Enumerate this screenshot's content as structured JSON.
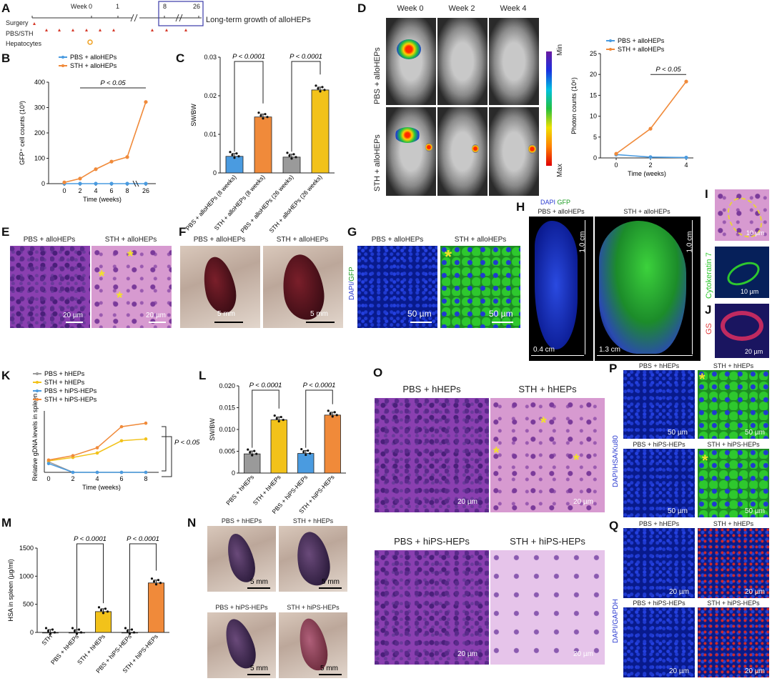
{
  "panels": {
    "A": {
      "letter": "A",
      "week_label": "Week",
      "ticks": [
        "0",
        "1",
        "8",
        "26"
      ],
      "rows": [
        "Surgery",
        "PBS/STH",
        "Hepatocytes"
      ],
      "caption": "Long-term growth of alloHEPs"
    },
    "B": {
      "letter": "B"
    },
    "C": {
      "letter": "C"
    },
    "D": {
      "letter": "D",
      "cols": [
        "Week 0",
        "Week 2",
        "Week 4"
      ],
      "rows": [
        "PBS + alloHEPs",
        "STH + alloHEPs"
      ],
      "colorbar_min": "Min",
      "colorbar_max": "Max"
    },
    "E": {
      "letter": "E",
      "left": "PBS + alloHEPs",
      "right": "STH + alloHEPs",
      "scale": "20 µm"
    },
    "F": {
      "letter": "F",
      "left": "PBS + alloHEPs",
      "right": "STH + alloHEPs",
      "scale": "5 mm"
    },
    "G": {
      "letter": "G",
      "left": "PBS + alloHEPs",
      "right": "STH + alloHEPs",
      "scale": "50 µm",
      "stain_dapi": "DAPI/",
      "stain_gfp": "GFP"
    },
    "H": {
      "letter": "H",
      "dapi": "DAPI",
      "gfp": "GFP",
      "left": "PBS + alloHEPs",
      "right": "STH + alloHEPs",
      "dim_left_h": "1.0 cm",
      "dim_left_w": "0.4 cm",
      "dim_right_h": "1.0 cm",
      "dim_right_w": "1.3 cm"
    },
    "I": {
      "letter": "I",
      "stain": "Cytokeratin 7",
      "scale_top": "10 µm",
      "scale_mid": "10 µm"
    },
    "J": {
      "letter": "J",
      "stain": "GS",
      "scale": "20 µm"
    },
    "K": {
      "letter": "K"
    },
    "L": {
      "letter": "L"
    },
    "M": {
      "letter": "M"
    },
    "N": {
      "letter": "N",
      "tl": "PBS + hHEPs",
      "tr": "STH + hHEPs",
      "bl": "PBS + hiPS-HEPs",
      "br": "STH + hiPS-HEPs",
      "scale": "5 mm"
    },
    "O": {
      "letter": "O",
      "tl": "PBS + hHEPs",
      "tr": "STH + hHEPs",
      "bl": "PBS + hiPS-HEPs",
      "br": "STH + hiPS-HEPs",
      "scale": "20 µm"
    },
    "P": {
      "letter": "P",
      "tl": "PBS + hHEPs",
      "tr": "STH + hHEPs",
      "bl": "PBS + hiPS-HEPs",
      "br": "STH + hiPS-HEPs",
      "scale": "50 µm",
      "stain": "DAPI/HSA/Ku80"
    },
    "Q": {
      "letter": "Q",
      "tl": "PBS + hHEPs",
      "tr": "STH + hHEPs",
      "bl": "PBS + hiPS-HEPs",
      "br": "STH + hiPS-HEPs",
      "scale": "20 µm",
      "stain": "DAPI/GAPDH"
    }
  },
  "colors": {
    "blue": "#4a9be0",
    "orange": "#f08a3a",
    "gray": "#9a9a9a",
    "yellow": "#f2c21a"
  },
  "chart_data": [
    {
      "id": "B",
      "type": "line",
      "xlabel": "Time (weeks)",
      "ylabel": "GFP⁺ cell counts (10³)",
      "x": [
        "0",
        "2",
        "4",
        "6",
        "8",
        "26"
      ],
      "ylim": [
        0,
        400
      ],
      "yticks": [
        "0",
        "100",
        "200",
        "300",
        "400"
      ],
      "series": [
        {
          "name": "PBS + alloHEPs",
          "values": [
            0,
            0,
            0,
            0,
            0,
            0
          ]
        },
        {
          "name": "STH + alloHEPs",
          "values": [
            5,
            20,
            57,
            87,
            105,
            322
          ]
        }
      ],
      "annotation": "P < 0.05"
    },
    {
      "id": "C",
      "type": "bar",
      "ylabel": "SW/BW",
      "ylim": [
        0,
        0.03
      ],
      "yticks": [
        "0",
        "0.01",
        "0.02",
        "0.03"
      ],
      "categories": [
        "PBS + alloHEPs (8 weeks)",
        "STH + alloHEPs (8 weeks)",
        "PBS + alloHEPs (26 weeks)",
        "STH + alloHEPs (26 weeks)"
      ],
      "values": [
        0.0043,
        0.0145,
        0.0041,
        0.0215
      ],
      "annotations": [
        "P < 0.0001",
        "P < 0.0001"
      ]
    },
    {
      "id": "D",
      "type": "line",
      "xlabel": "Time (weeks)",
      "ylabel": "Photon counts (10⁶)",
      "x": [
        "0",
        "2",
        "4"
      ],
      "ylim": [
        0,
        25
      ],
      "yticks": [
        "0",
        "5",
        "10",
        "15",
        "20",
        "25"
      ],
      "series": [
        {
          "name": "PBS + alloHEPs",
          "values": [
            0.8,
            0.2,
            0.1
          ]
        },
        {
          "name": "STH + alloHEPs",
          "values": [
            1.0,
            7.0,
            18.3
          ]
        }
      ],
      "annotation": "P < 0.05"
    },
    {
      "id": "K",
      "type": "line",
      "xlabel": "Time (weeks)",
      "ylabel": "Relative gDNA levels in spleen",
      "x": [
        "0",
        "2",
        "4",
        "6",
        "8"
      ],
      "series": [
        {
          "name": "PBS + hHEPs",
          "values": [
            1.2,
            0,
            0,
            0,
            0
          ]
        },
        {
          "name": "STH + hHEPs",
          "values": [
            1.3,
            1.7,
            2.2,
            3.6,
            3.8
          ]
        },
        {
          "name": "PBS + hiPS-HEPs",
          "values": [
            1.0,
            0,
            0,
            0,
            0
          ]
        },
        {
          "name": "STH + hiPS-HEPs",
          "values": [
            1.4,
            1.9,
            2.8,
            5.2,
            5.6
          ]
        }
      ],
      "annotation": "P < 0.05"
    },
    {
      "id": "L",
      "type": "bar",
      "ylabel": "SW/BW",
      "ylim": [
        0,
        0.02
      ],
      "yticks": [
        "0",
        "0.005",
        "0.010",
        "0.015",
        "0.020"
      ],
      "categories": [
        "PBS + hHEPs",
        "STH + hHEPs",
        "PBS + hiPS-HEPs",
        "STH + hiPS-HEPs"
      ],
      "values": [
        0.0044,
        0.0122,
        0.0045,
        0.0133
      ],
      "annotations": [
        "P < 0.0001",
        "P < 0.0001"
      ]
    },
    {
      "id": "M",
      "type": "bar",
      "ylabel": "HSA in spleen (µg/ml)",
      "ylim": [
        0,
        1500
      ],
      "yticks": [
        "0",
        "500",
        "1000",
        "1500"
      ],
      "categories": [
        "STH",
        "PBS + hHEPs",
        "STH + hHEPs",
        "PBS + hiPS-HEPs",
        "STH + hiPS-HEPs"
      ],
      "values": [
        0,
        0,
        370,
        0,
        880
      ],
      "annotations": [
        "P < 0.0001",
        "P < 0.0001"
      ]
    }
  ]
}
